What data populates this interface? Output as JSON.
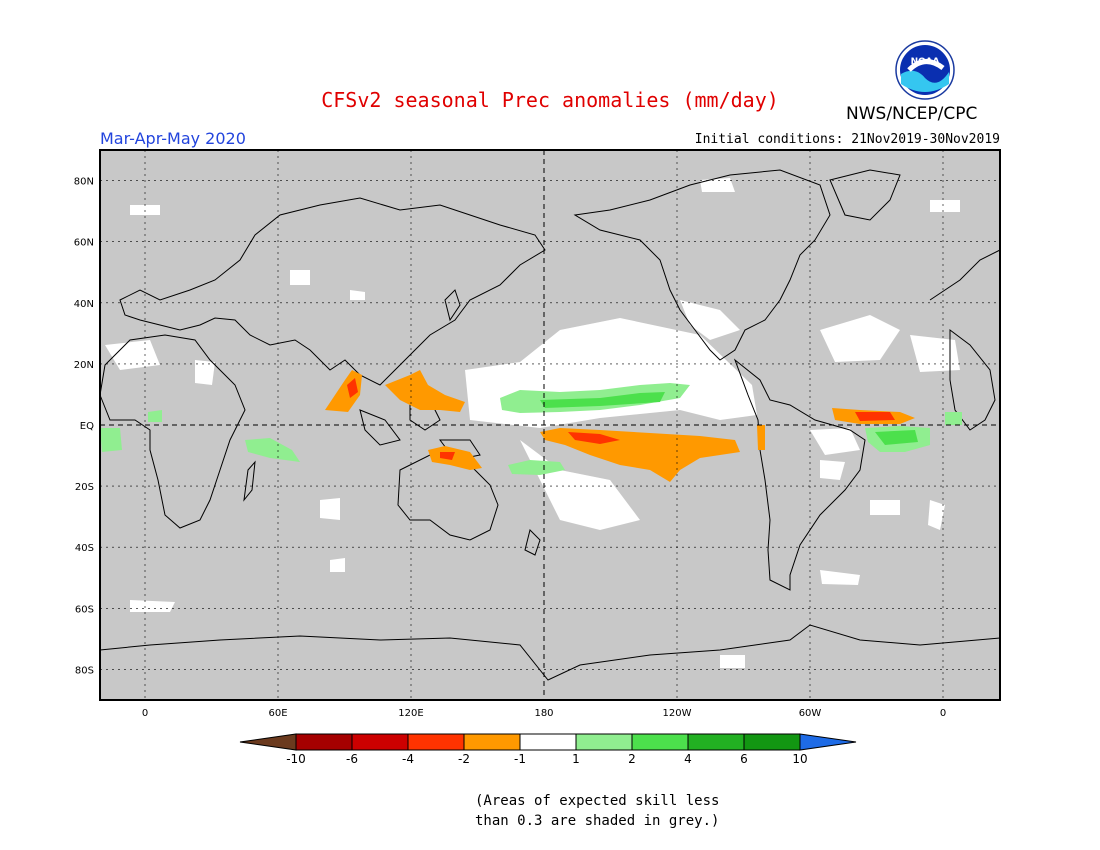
{
  "header": {
    "title": "CFSv2 seasonal Prec anomalies (mm/day)",
    "org": "NWS/NCEP/CPC",
    "season": "Mar-Apr-May 2020",
    "initial_conditions": "Initial conditions: 21Nov2019-30Nov2019",
    "logo_text": "NOAA"
  },
  "map": {
    "lat_labels": [
      "80N",
      "60N",
      "40N",
      "20N",
      "EQ",
      "20S",
      "40S",
      "60S",
      "80S"
    ],
    "lon_labels": [
      "0",
      "60E",
      "120E",
      "180",
      "120W",
      "60W",
      "0"
    ],
    "grey_color": "#c8c8c8"
  },
  "colorbar": {
    "tick_labels": [
      "-10",
      "-6",
      "-4",
      "-2",
      "-1",
      "1",
      "2",
      "4",
      "6",
      "10"
    ],
    "colors": [
      "#6b3a1e",
      "#a50000",
      "#cc0000",
      "#ff3300",
      "#ff9900",
      "#ffffff",
      "#90ee90",
      "#4ce04c",
      "#22b022",
      "#129612",
      "#1e6be6"
    ]
  },
  "footnote": {
    "line1": "(Areas of expected skill less",
    "line2": "than 0.3 are shaded in grey.)"
  }
}
